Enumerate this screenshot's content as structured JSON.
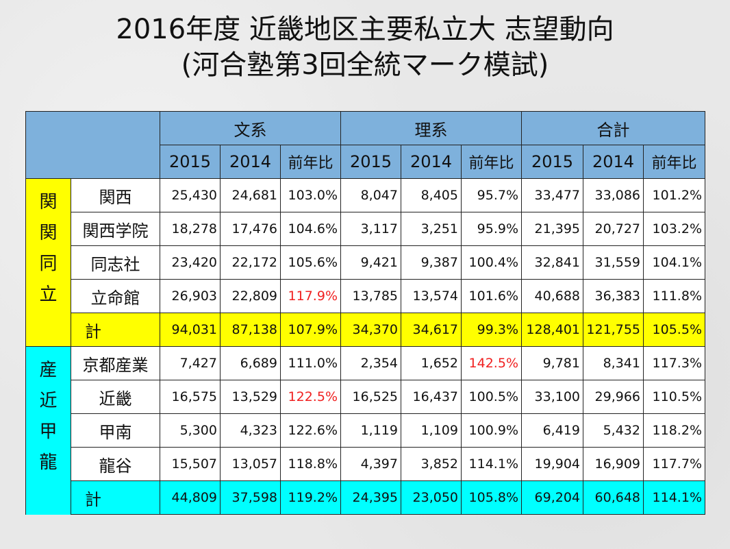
{
  "title": {
    "line1": "2016年度 近畿地区主要私立大 志望動向",
    "line2": "(河合塾第3回全統マーク模試)"
  },
  "header": {
    "groups": [
      "文系",
      "理系",
      "合計"
    ],
    "subcolumns": [
      "2015",
      "2014",
      "前年比",
      "2015",
      "2014",
      "前年比",
      "2015",
      "2014",
      "前年比"
    ]
  },
  "colors": {
    "header": "#7eb1dc",
    "group1": "#ffff00",
    "group2": "#00ffff",
    "highlight": "#f02020"
  },
  "sections": [
    {
      "group_label": [
        "関",
        "関",
        "同",
        "立"
      ],
      "color": "yellow",
      "rows": [
        {
          "name": "関西",
          "values": [
            "25,430",
            "24,681",
            "103.0%",
            "8,047",
            "8,405",
            "95.7%",
            "33,477",
            "33,086",
            "101.2%"
          ],
          "red": []
        },
        {
          "name": "関西学院",
          "values": [
            "18,278",
            "17,476",
            "104.6%",
            "3,117",
            "3,251",
            "95.9%",
            "21,395",
            "20,727",
            "103.2%"
          ],
          "red": []
        },
        {
          "name": "同志社",
          "values": [
            "23,420",
            "22,172",
            "105.6%",
            "9,421",
            "9,387",
            "100.4%",
            "32,841",
            "31,559",
            "104.1%"
          ],
          "red": []
        },
        {
          "name": "立命館",
          "values": [
            "26,903",
            "22,809",
            "117.9%",
            "13,785",
            "13,574",
            "101.6%",
            "40,688",
            "36,383",
            "111.8%"
          ],
          "red": [
            2
          ]
        }
      ],
      "total": {
        "name": "計",
        "values": [
          "94,031",
          "87,138",
          "107.9%",
          "34,370",
          "34,617",
          "99.3%",
          "128,401",
          "121,755",
          "105.5%"
        ]
      }
    },
    {
      "group_label": [
        "産",
        "近",
        "甲",
        "龍"
      ],
      "color": "cyan",
      "rows": [
        {
          "name": "京都産業",
          "values": [
            "7,427",
            "6,689",
            "111.0%",
            "2,354",
            "1,652",
            "142.5%",
            "9,781",
            "8,341",
            "117.3%"
          ],
          "red": [
            5
          ]
        },
        {
          "name": "近畿",
          "values": [
            "16,575",
            "13,529",
            "122.5%",
            "16,525",
            "16,437",
            "100.5%",
            "33,100",
            "29,966",
            "110.5%"
          ],
          "red": [
            2
          ]
        },
        {
          "name": "甲南",
          "values": [
            "5,300",
            "4,323",
            "122.6%",
            "1,119",
            "1,109",
            "100.9%",
            "6,419",
            "5,432",
            "118.2%"
          ],
          "red": []
        },
        {
          "name": "龍谷",
          "values": [
            "15,507",
            "13,057",
            "118.8%",
            "4,397",
            "3,852",
            "114.1%",
            "19,904",
            "16,909",
            "117.7%"
          ],
          "red": []
        }
      ],
      "total": {
        "name": "計",
        "values": [
          "44,809",
          "37,598",
          "119.2%",
          "24,395",
          "23,050",
          "105.8%",
          "69,204",
          "60,648",
          "114.1%"
        ]
      }
    }
  ]
}
